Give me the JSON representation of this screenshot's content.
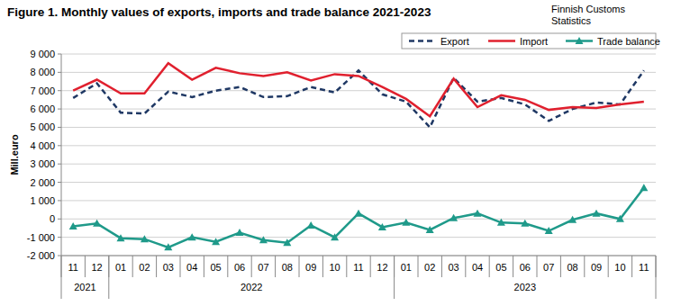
{
  "chart_data": {
    "type": "line",
    "title": "Figure 1. Monthly values of exports, imports and trade balance 2021-2023",
    "source": [
      "Finnish Customs",
      "Statistics"
    ],
    "y_label": "Mill.euro",
    "categories": [
      "11",
      "12",
      "01",
      "02",
      "03",
      "04",
      "05",
      "06",
      "07",
      "08",
      "09",
      "10",
      "11",
      "12",
      "01",
      "02",
      "03",
      "04",
      "05",
      "06",
      "07",
      "08",
      "09",
      "10",
      "11"
    ],
    "x_groups": [
      {
        "label": "2021",
        "count": 2
      },
      {
        "label": "2022",
        "count": 12
      },
      {
        "label": "2023",
        "count": 11
      }
    ],
    "series": [
      {
        "name": "Export",
        "color": "#1f3864",
        "line_style": "dashed",
        "marker": "none",
        "values": [
          6600,
          7400,
          5800,
          5750,
          6950,
          6650,
          7000,
          7200,
          6650,
          6700,
          7200,
          6900,
          8100,
          6800,
          6400,
          5000,
          7700,
          6400,
          6600,
          6250,
          5350,
          6000,
          6350,
          6250,
          8100
        ]
      },
      {
        "name": "Import",
        "color": "#e0202e",
        "line_style": "solid",
        "marker": "none",
        "values": [
          7000,
          7600,
          6850,
          6850,
          8500,
          7600,
          8250,
          7950,
          7800,
          8000,
          7550,
          7900,
          7800,
          7200,
          6550,
          5600,
          7650,
          6100,
          6750,
          6500,
          5950,
          6100,
          6050,
          6250,
          6400
        ]
      },
      {
        "name": "Trade balance",
        "color": "#1f9a8a",
        "line_style": "solid",
        "marker": "triangle",
        "values": [
          -400,
          -250,
          -1050,
          -1100,
          -1550,
          -1000,
          -1250,
          -750,
          -1150,
          -1300,
          -350,
          -1000,
          300,
          -450,
          -200,
          -600,
          50,
          300,
          -200,
          -250,
          -650,
          -50,
          300,
          0,
          1700
        ]
      }
    ],
    "ylim": [
      -2000,
      9000
    ],
    "yticks": [
      {
        "value": -2000,
        "label": "-2 000"
      },
      {
        "value": -1000,
        "label": "-1 000"
      },
      0,
      {
        "value": 1000,
        "label": "1 000"
      },
      {
        "value": 2000,
        "label": "2 000"
      },
      {
        "value": 3000,
        "label": "3 000"
      },
      {
        "value": 4000,
        "label": "4 000"
      },
      {
        "value": 5000,
        "label": "5 000"
      },
      {
        "value": 6000,
        "label": "6 000"
      },
      {
        "value": 7000,
        "label": "7 000"
      },
      {
        "value": 8000,
        "label": "8 000"
      },
      {
        "value": 9000,
        "label": "9 000"
      }
    ],
    "grid": true,
    "legend": "top-right"
  }
}
